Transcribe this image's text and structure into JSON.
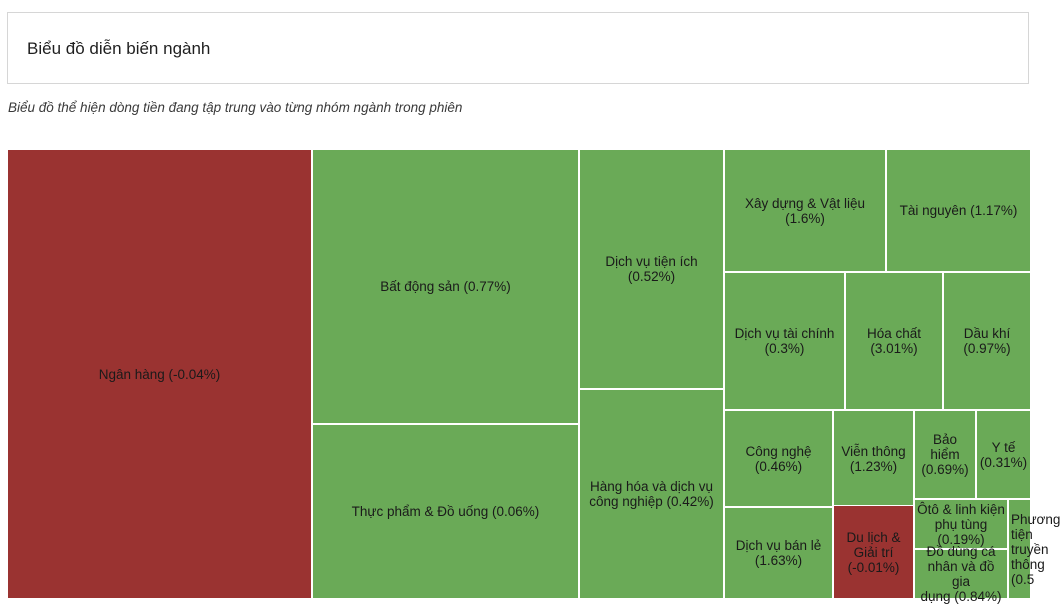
{
  "header": {
    "title": "Biểu đồ diễn biến ngành"
  },
  "subtitle": "Biểu đồ thể hiện dòng tiền đang tập trung vào từng nhóm ngành trong phiên",
  "colors": {
    "positive": "#6aaa57",
    "negative": "#9a3331"
  },
  "chart_data": {
    "type": "treemap",
    "tiles": [
      {
        "label": "Ngân hàng (-0.04%)",
        "name": "Ngân hàng",
        "change": -0.04
      },
      {
        "label": "Bất động sản (0.77%)",
        "name": "Bất động sản",
        "change": 0.77
      },
      {
        "label": "Thực phẩm & Đồ uống (0.06%)",
        "name": "Thực phẩm & Đồ uống",
        "change": 0.06
      },
      {
        "label": "Dịch vụ tiện ích\n(0.52%)",
        "name": "Dịch vụ tiện ích",
        "change": 0.52
      },
      {
        "label": "Hàng hóa và dịch vụ\ncông nghiệp (0.42%)",
        "name": "Hàng hóa và dịch vụ công nghiệp",
        "change": 0.42
      },
      {
        "label": "Xây dựng & Vật liệu\n(1.6%)",
        "name": "Xây dựng & Vật liệu",
        "change": 1.6
      },
      {
        "label": "Tài nguyên (1.17%)",
        "name": "Tài nguyên",
        "change": 1.17
      },
      {
        "label": "Dịch vụ tài chính\n(0.3%)",
        "name": "Dịch vụ tài chính",
        "change": 0.3
      },
      {
        "label": "Hóa chất\n(3.01%)",
        "name": "Hóa chất",
        "change": 3.01
      },
      {
        "label": "Dầu khí\n(0.97%)",
        "name": "Dầu khí",
        "change": 0.97
      },
      {
        "label": "Công nghệ\n(0.46%)",
        "name": "Công nghệ",
        "change": 0.46
      },
      {
        "label": "Viễn thông\n(1.23%)",
        "name": "Viễn thông",
        "change": 1.23
      },
      {
        "label": "Bảo hiểm\n(0.69%)",
        "name": "Bảo hiểm",
        "change": 0.69
      },
      {
        "label": "Y tế\n(0.31%)",
        "name": "Y tế",
        "change": 0.31
      },
      {
        "label": "Dịch vụ bán lẻ\n(1.63%)",
        "name": "Dịch vụ bán lẻ",
        "change": 1.63
      },
      {
        "label": "Du lịch &\nGiải trí\n(-0.01%)",
        "name": "Du lịch & Giải trí",
        "change": -0.01
      },
      {
        "label": "Ôtô & linh kiện\nphụ tùng\n(0.19%)",
        "name": "Ôtô & linh kiện phụ tùng",
        "change": 0.19
      },
      {
        "label": "Đồ dùng cá\nnhân và đồ gia\ndụng (0.84%)",
        "name": "Đồ dùng cá nhân và đồ gia dụng",
        "change": 0.84
      },
      {
        "label": "Phương\ntiện\ntruyền\nthông\n(0.5",
        "name": "Phương tiện truyền thông",
        "change": 0.5
      }
    ]
  }
}
